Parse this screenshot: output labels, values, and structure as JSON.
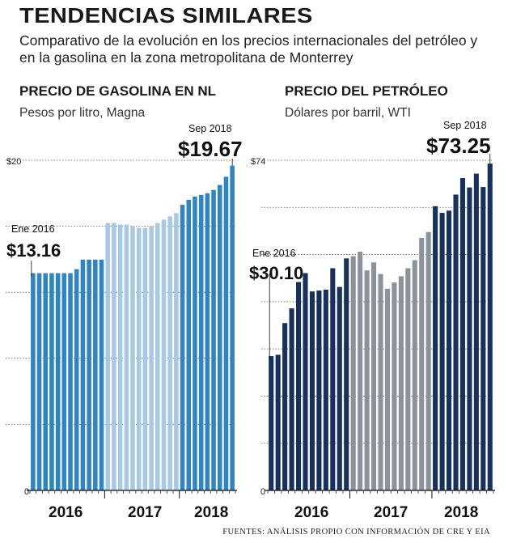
{
  "title": "TENDENCIAS SIMILARES",
  "subtitle": "Comparativo de la evolución en los precios internacionales del petróleo y en la gasolina en la zona metropolitana de Monterrey",
  "source": "FUENTES: ANÁLISIS PROPIO CON INFORMACIÓN DE CRE Y EIA",
  "colors": {
    "dark": "#17305c",
    "light": "#a8c8e4",
    "medium": "#2f84c1",
    "gray": "#8b929c"
  },
  "chart_data": [
    {
      "type": "bar",
      "title": "PRECIO DE GASOLINA EN NL",
      "subtitle": "Pesos por litro, Magna",
      "ylim": [
        0,
        20
      ],
      "yticks": [
        0,
        20
      ],
      "ytick_labels": [
        "0",
        "$20"
      ],
      "year_labels": [
        "2016",
        "2017",
        "2018"
      ],
      "start_annotation": {
        "label": "Ene 2016",
        "value": "$13.16"
      },
      "end_annotation": {
        "label": "Sep 2018",
        "value": "$19.67"
      },
      "series": [
        {
          "year": "2016",
          "color": "#2f84c1",
          "values": [
            13.16,
            13.16,
            13.16,
            13.16,
            13.16,
            13.16,
            13.16,
            13.4,
            13.98,
            13.98,
            13.98,
            13.98
          ]
        },
        {
          "year": "2017",
          "color": "#a8c8e4",
          "values": [
            16.2,
            16.2,
            16.1,
            16.1,
            16.0,
            15.9,
            15.9,
            16.0,
            16.2,
            16.4,
            16.6,
            16.8
          ]
        },
        {
          "year": "2018",
          "color": "#2f84c1",
          "values": [
            17.3,
            17.6,
            17.8,
            17.9,
            18.0,
            18.2,
            18.5,
            19.0,
            19.67
          ]
        }
      ]
    },
    {
      "type": "bar",
      "title": "PRECIO DEL PETRÓLEO",
      "subtitle": "Dólares por barril, WTI",
      "ylim": [
        0,
        74
      ],
      "yticks": [
        0,
        74
      ],
      "ytick_labels": [
        "0",
        "$74"
      ],
      "year_labels": [
        "2016",
        "2017",
        "2018"
      ],
      "start_annotation": {
        "label": "Ene 2016",
        "value": "$30.10"
      },
      "end_annotation": {
        "label": "Sep 2018",
        "value": "$73.25"
      },
      "series": [
        {
          "year": "2016",
          "color": "#17305c",
          "values": [
            30.1,
            30.4,
            37.5,
            40.8,
            46.7,
            48.7,
            44.6,
            44.8,
            45.0,
            49.8,
            45.6,
            52.0
          ]
        },
        {
          "year": "2017",
          "color": "#8b929c",
          "values": [
            52.5,
            53.5,
            49.3,
            51.1,
            48.5,
            45.2,
            46.6,
            48.0,
            49.8,
            51.6,
            56.6,
            57.9
          ]
        },
        {
          "year": "2018",
          "color": "#17305c",
          "values": [
            63.7,
            62.2,
            62.7,
            66.3,
            70.0,
            67.9,
            71.0,
            68.0,
            73.25
          ]
        }
      ]
    }
  ]
}
